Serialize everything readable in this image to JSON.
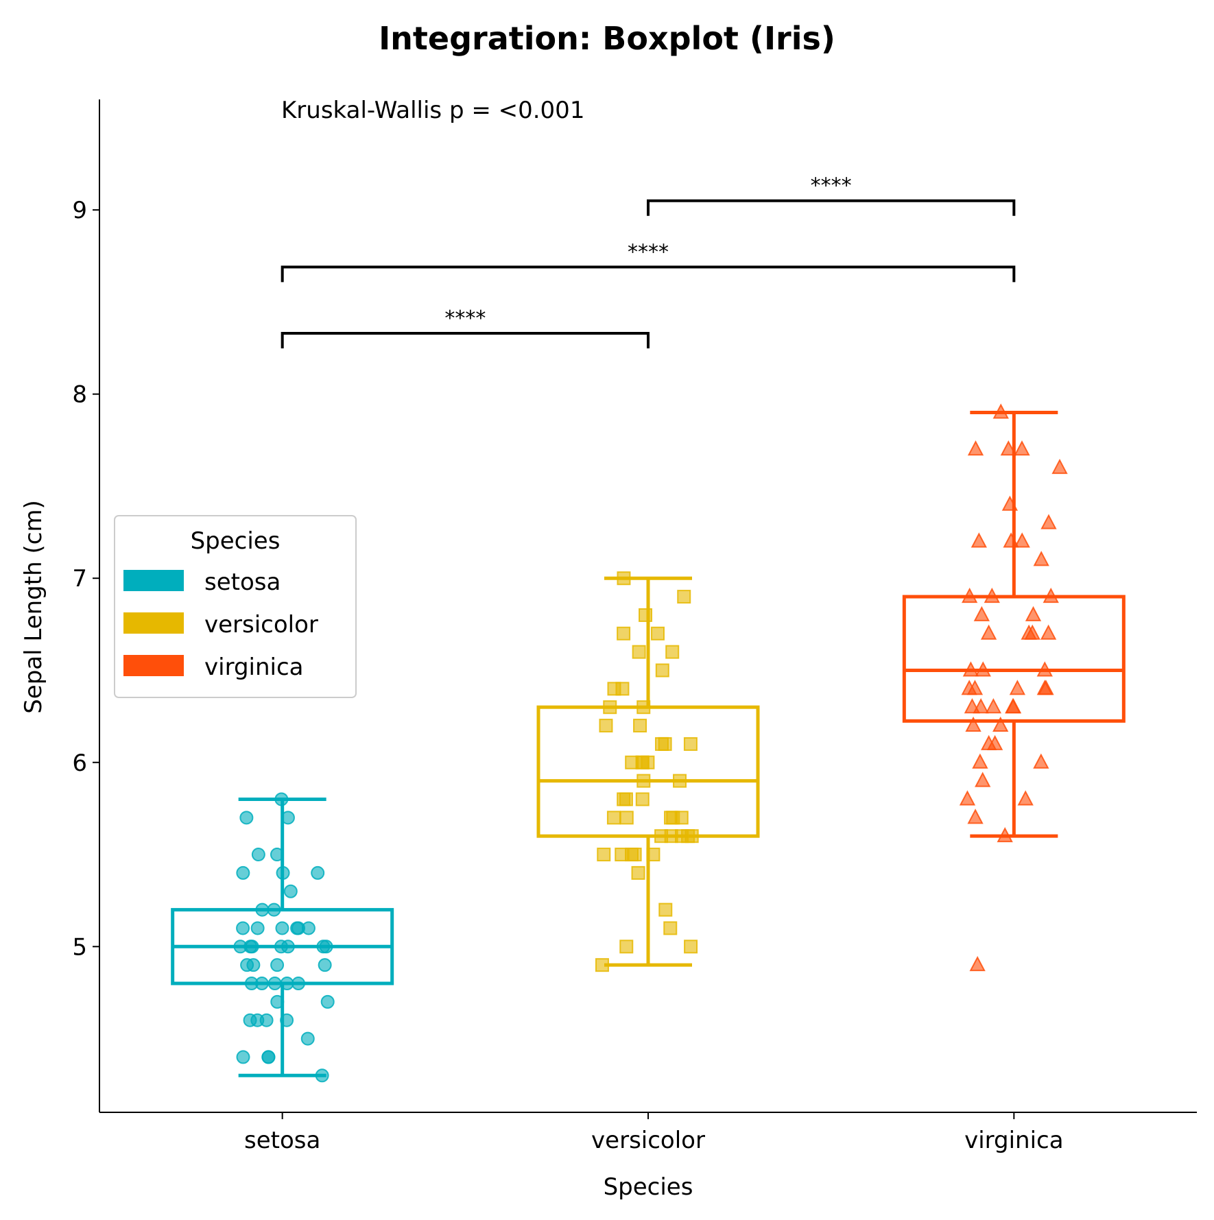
{
  "chart_data": {
    "type": "box",
    "title": "Integration: Boxplot (Iris)",
    "xlabel": "Species",
    "ylabel": "Sepal Length (cm)",
    "ylim": [
      4.1,
      9.6
    ],
    "yticks": [
      5,
      6,
      7,
      8,
      9
    ],
    "categories": [
      "setosa",
      "versicolor",
      "virginica"
    ],
    "colors": [
      "#00AEBD",
      "#E6B800",
      "#FF4F0A"
    ],
    "markers": [
      "circle",
      "square",
      "triangle"
    ],
    "annotation": "Kruskal-Wallis p = <0.001",
    "legend": {
      "title": "Species",
      "placement": "center-left",
      "entries": [
        "setosa",
        "versicolor",
        "virginica"
      ]
    },
    "boxes": [
      {
        "name": "setosa",
        "whisker_low": 4.3,
        "q1": 4.8,
        "median": 5.0,
        "q3": 5.2,
        "whisker_high": 5.8
      },
      {
        "name": "versicolor",
        "whisker_low": 4.9,
        "q1": 5.6,
        "median": 5.9,
        "q3": 6.3,
        "whisker_high": 7.0
      },
      {
        "name": "virginica",
        "whisker_low": 5.6,
        "q1": 6.225,
        "median": 6.5,
        "q3": 6.9,
        "whisker_high": 7.9
      }
    ],
    "points": [
      [
        5.8,
        5.7,
        5.7,
        5.5,
        5.5,
        5.4,
        5.4,
        5.4,
        5.3,
        5.2,
        5.2,
        5.1,
        5.1,
        5.1,
        5.1,
        5.1,
        5.1,
        5.0,
        5.0,
        5.0,
        5.0,
        5.0,
        5.0,
        5.0,
        4.9,
        4.9,
        4.9,
        4.9,
        4.8,
        4.8,
        4.8,
        4.8,
        4.8,
        4.7,
        4.7,
        4.6,
        4.6,
        4.6,
        4.6,
        4.5,
        4.4,
        4.4,
        4.4,
        4.3
      ],
      [
        7.0,
        6.9,
        6.8,
        6.7,
        6.7,
        6.6,
        6.6,
        6.5,
        6.4,
        6.4,
        6.3,
        6.3,
        6.2,
        6.2,
        6.1,
        6.1,
        6.1,
        6.0,
        6.0,
        6.0,
        6.0,
        5.9,
        5.9,
        5.8,
        5.8,
        5.8,
        5.7,
        5.7,
        5.7,
        5.7,
        5.7,
        5.6,
        5.6,
        5.6,
        5.6,
        5.6,
        5.5,
        5.5,
        5.5,
        5.5,
        5.5,
        5.4,
        5.2,
        5.1,
        5.0,
        5.0,
        4.9
      ],
      [
        7.9,
        7.7,
        7.7,
        7.7,
        7.6,
        7.4,
        7.3,
        7.2,
        7.2,
        7.2,
        7.1,
        6.9,
        6.9,
        6.9,
        6.8,
        6.8,
        6.7,
        6.7,
        6.7,
        6.7,
        6.5,
        6.5,
        6.5,
        6.4,
        6.4,
        6.4,
        6.4,
        6.4,
        6.3,
        6.3,
        6.3,
        6.3,
        6.3,
        6.2,
        6.2,
        6.1,
        6.1,
        6.0,
        6.0,
        5.9,
        5.8,
        5.8,
        5.7,
        5.6,
        4.9
      ]
    ],
    "comparisons": [
      {
        "groups": [
          "setosa",
          "versicolor"
        ],
        "level": 8.33,
        "label": "****"
      },
      {
        "groups": [
          "setosa",
          "virginica"
        ],
        "level": 8.69,
        "label": "****"
      },
      {
        "groups": [
          "versicolor",
          "virginica"
        ],
        "level": 9.05,
        "label": "****"
      }
    ]
  }
}
